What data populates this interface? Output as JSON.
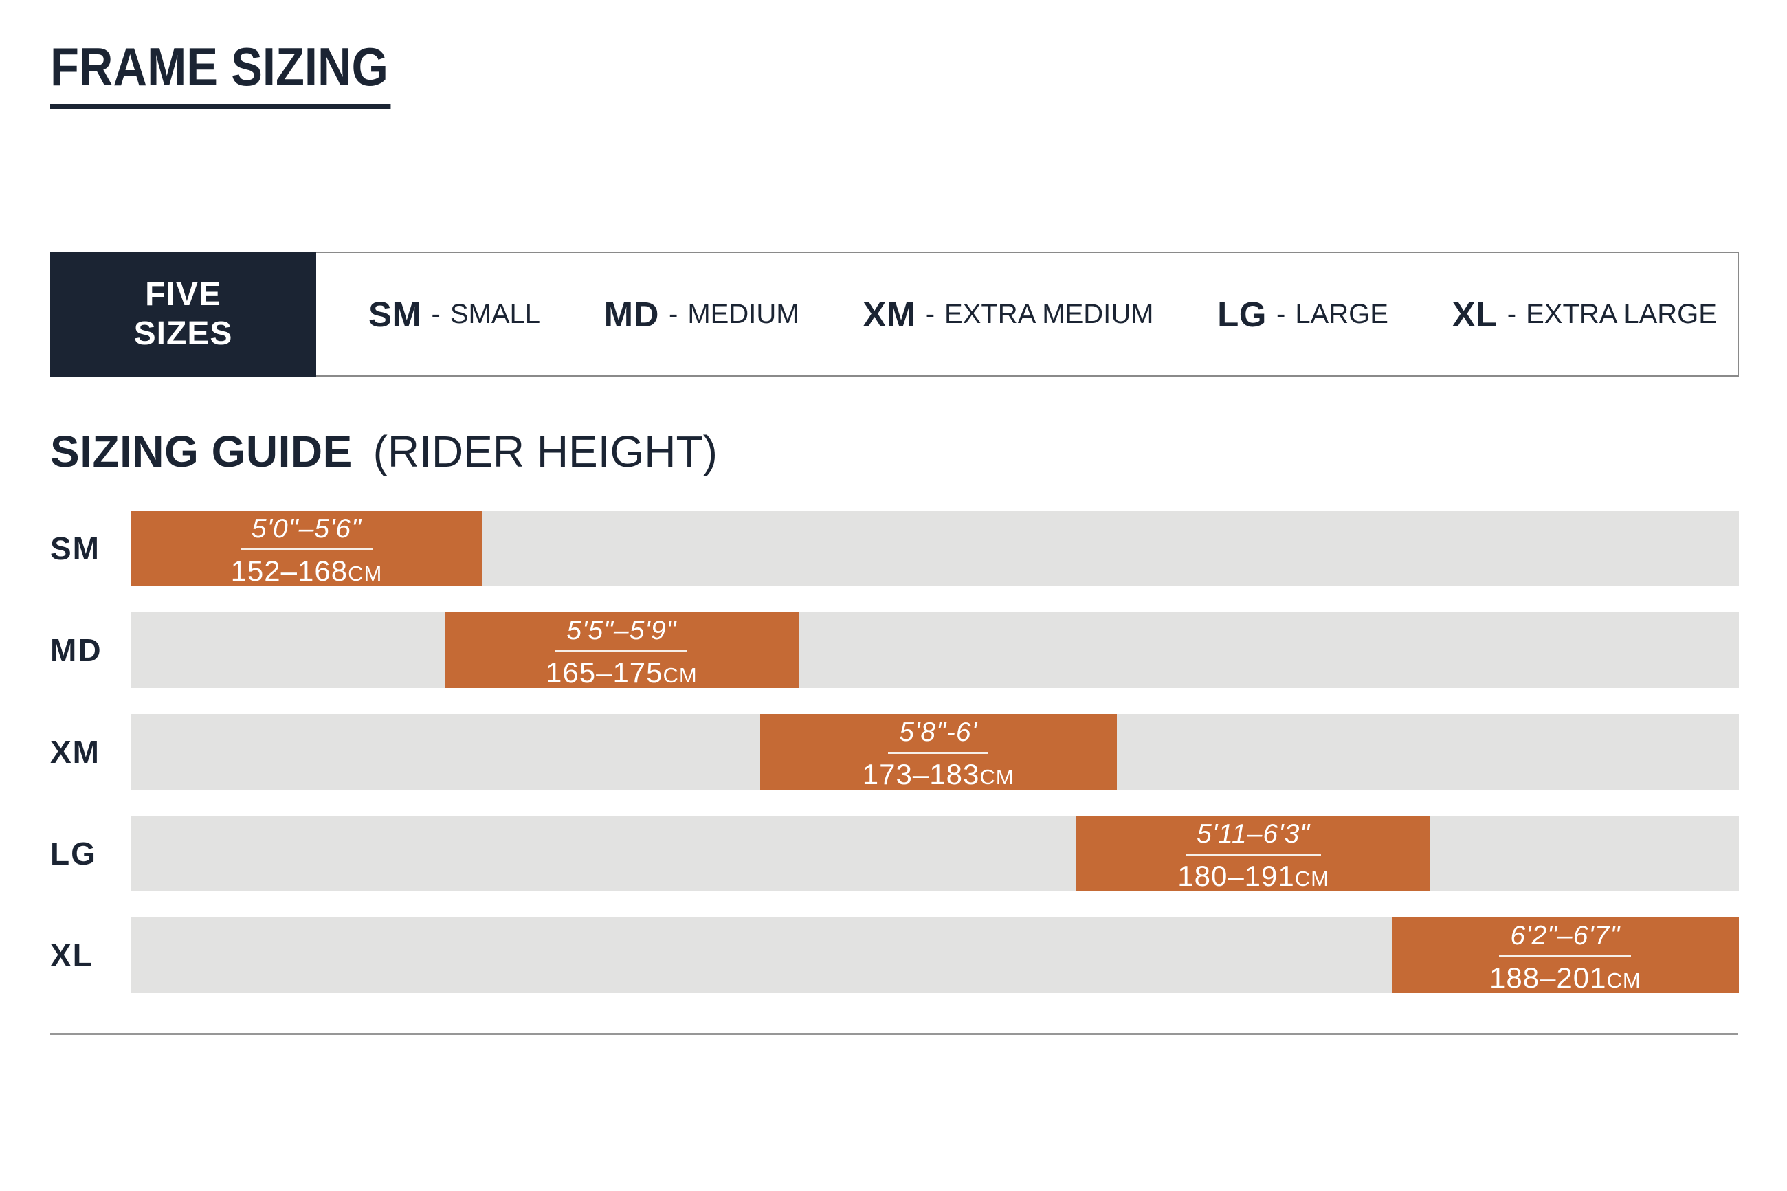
{
  "page": {
    "title": "FRAME SIZING"
  },
  "colors": {
    "navy": "#1B2433",
    "orange": "#C56A35",
    "track_gray": "#E2E2E1",
    "border_gray": "#8A8A8A",
    "rule_gray": "#979797",
    "text_white": "#FFFFFF"
  },
  "sizes_bar": {
    "badge": {
      "line1": "FIVE",
      "line2": "SIZES"
    },
    "separator": "-",
    "sizes": [
      {
        "code": "SM",
        "label": "SMALL"
      },
      {
        "code": "MD",
        "label": "MEDIUM"
      },
      {
        "code": "XM",
        "label": "EXTRA MEDIUM"
      },
      {
        "code": "LG",
        "label": "LARGE"
      },
      {
        "code": "XL",
        "label": "EXTRA LARGE"
      }
    ]
  },
  "guide_heading": {
    "title": "SIZING GUIDE",
    "subtitle": "(RIDER HEIGHT)"
  },
  "chart_data": {
    "type": "bar",
    "subtype": "horizontal-range",
    "title": "SIZING GUIDE (RIDER HEIGHT)",
    "categories": [
      "SM",
      "MD",
      "XM",
      "LG",
      "XL"
    ],
    "grid": false,
    "legend_position": "none",
    "rows": [
      {
        "size": "SM",
        "imperial": "5'0\"–5'6\"",
        "metric": "152–168",
        "unit": "CM",
        "height_cm": [
          152,
          168
        ],
        "bar_start_frac": 0.0,
        "bar_end_frac": 0.218
      },
      {
        "size": "MD",
        "imperial": "5'5\"–5'9\"",
        "metric": "165–175",
        "unit": "CM",
        "height_cm": [
          165,
          175
        ],
        "bar_start_frac": 0.195,
        "bar_end_frac": 0.415
      },
      {
        "size": "XM",
        "imperial": "5'8\"-6'",
        "metric": "173–183",
        "unit": "CM",
        "height_cm": [
          173,
          183
        ],
        "bar_start_frac": 0.391,
        "bar_end_frac": 0.613
      },
      {
        "size": "LG",
        "imperial": "5'11–6'3\"",
        "metric": "180–191",
        "unit": "CM",
        "height_cm": [
          180,
          191
        ],
        "bar_start_frac": 0.588,
        "bar_end_frac": 0.808
      },
      {
        "size": "XL",
        "imperial": "6'2\"–6'7\"",
        "metric": "188–201",
        "unit": "CM",
        "height_cm": [
          188,
          201
        ],
        "bar_start_frac": 0.784,
        "bar_end_frac": 1.0
      }
    ]
  }
}
